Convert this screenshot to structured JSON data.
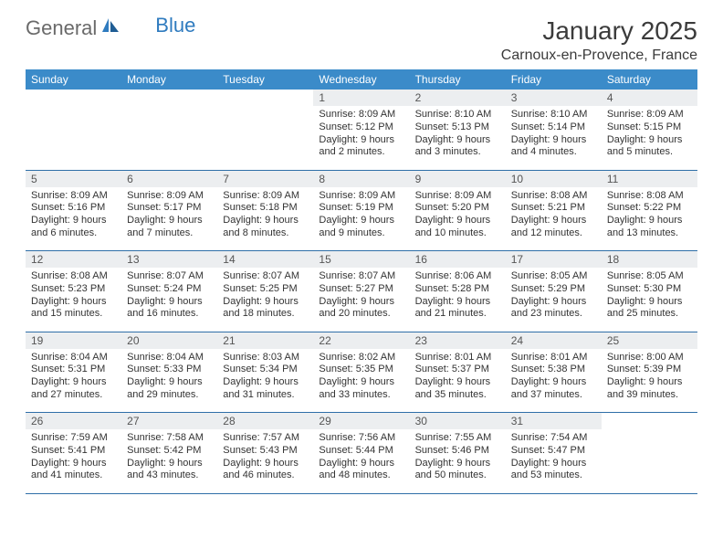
{
  "logo": {
    "text_general": "General",
    "text_blue": "Blue"
  },
  "title": "January 2025",
  "location": "Carnoux-en-Provence, France",
  "colors": {
    "header_bg": "#3b8bc9",
    "header_text": "#ffffff",
    "daynum_bg": "#eceef0",
    "rule": "#2f6fa8",
    "body_text": "#333333",
    "logo_gray": "#6a6a6a",
    "logo_blue": "#2f7bbf"
  },
  "weekdays": [
    "Sunday",
    "Monday",
    "Tuesday",
    "Wednesday",
    "Thursday",
    "Friday",
    "Saturday"
  ],
  "weeks": [
    [
      null,
      null,
      null,
      {
        "n": "1",
        "sr": "Sunrise: 8:09 AM",
        "ss": "Sunset: 5:12 PM",
        "d1": "Daylight: 9 hours",
        "d2": "and 2 minutes."
      },
      {
        "n": "2",
        "sr": "Sunrise: 8:10 AM",
        "ss": "Sunset: 5:13 PM",
        "d1": "Daylight: 9 hours",
        "d2": "and 3 minutes."
      },
      {
        "n": "3",
        "sr": "Sunrise: 8:10 AM",
        "ss": "Sunset: 5:14 PM",
        "d1": "Daylight: 9 hours",
        "d2": "and 4 minutes."
      },
      {
        "n": "4",
        "sr": "Sunrise: 8:09 AM",
        "ss": "Sunset: 5:15 PM",
        "d1": "Daylight: 9 hours",
        "d2": "and 5 minutes."
      }
    ],
    [
      {
        "n": "5",
        "sr": "Sunrise: 8:09 AM",
        "ss": "Sunset: 5:16 PM",
        "d1": "Daylight: 9 hours",
        "d2": "and 6 minutes."
      },
      {
        "n": "6",
        "sr": "Sunrise: 8:09 AM",
        "ss": "Sunset: 5:17 PM",
        "d1": "Daylight: 9 hours",
        "d2": "and 7 minutes."
      },
      {
        "n": "7",
        "sr": "Sunrise: 8:09 AM",
        "ss": "Sunset: 5:18 PM",
        "d1": "Daylight: 9 hours",
        "d2": "and 8 minutes."
      },
      {
        "n": "8",
        "sr": "Sunrise: 8:09 AM",
        "ss": "Sunset: 5:19 PM",
        "d1": "Daylight: 9 hours",
        "d2": "and 9 minutes."
      },
      {
        "n": "9",
        "sr": "Sunrise: 8:09 AM",
        "ss": "Sunset: 5:20 PM",
        "d1": "Daylight: 9 hours",
        "d2": "and 10 minutes."
      },
      {
        "n": "10",
        "sr": "Sunrise: 8:08 AM",
        "ss": "Sunset: 5:21 PM",
        "d1": "Daylight: 9 hours",
        "d2": "and 12 minutes."
      },
      {
        "n": "11",
        "sr": "Sunrise: 8:08 AM",
        "ss": "Sunset: 5:22 PM",
        "d1": "Daylight: 9 hours",
        "d2": "and 13 minutes."
      }
    ],
    [
      {
        "n": "12",
        "sr": "Sunrise: 8:08 AM",
        "ss": "Sunset: 5:23 PM",
        "d1": "Daylight: 9 hours",
        "d2": "and 15 minutes."
      },
      {
        "n": "13",
        "sr": "Sunrise: 8:07 AM",
        "ss": "Sunset: 5:24 PM",
        "d1": "Daylight: 9 hours",
        "d2": "and 16 minutes."
      },
      {
        "n": "14",
        "sr": "Sunrise: 8:07 AM",
        "ss": "Sunset: 5:25 PM",
        "d1": "Daylight: 9 hours",
        "d2": "and 18 minutes."
      },
      {
        "n": "15",
        "sr": "Sunrise: 8:07 AM",
        "ss": "Sunset: 5:27 PM",
        "d1": "Daylight: 9 hours",
        "d2": "and 20 minutes."
      },
      {
        "n": "16",
        "sr": "Sunrise: 8:06 AM",
        "ss": "Sunset: 5:28 PM",
        "d1": "Daylight: 9 hours",
        "d2": "and 21 minutes."
      },
      {
        "n": "17",
        "sr": "Sunrise: 8:05 AM",
        "ss": "Sunset: 5:29 PM",
        "d1": "Daylight: 9 hours",
        "d2": "and 23 minutes."
      },
      {
        "n": "18",
        "sr": "Sunrise: 8:05 AM",
        "ss": "Sunset: 5:30 PM",
        "d1": "Daylight: 9 hours",
        "d2": "and 25 minutes."
      }
    ],
    [
      {
        "n": "19",
        "sr": "Sunrise: 8:04 AM",
        "ss": "Sunset: 5:31 PM",
        "d1": "Daylight: 9 hours",
        "d2": "and 27 minutes."
      },
      {
        "n": "20",
        "sr": "Sunrise: 8:04 AM",
        "ss": "Sunset: 5:33 PM",
        "d1": "Daylight: 9 hours",
        "d2": "and 29 minutes."
      },
      {
        "n": "21",
        "sr": "Sunrise: 8:03 AM",
        "ss": "Sunset: 5:34 PM",
        "d1": "Daylight: 9 hours",
        "d2": "and 31 minutes."
      },
      {
        "n": "22",
        "sr": "Sunrise: 8:02 AM",
        "ss": "Sunset: 5:35 PM",
        "d1": "Daylight: 9 hours",
        "d2": "and 33 minutes."
      },
      {
        "n": "23",
        "sr": "Sunrise: 8:01 AM",
        "ss": "Sunset: 5:37 PM",
        "d1": "Daylight: 9 hours",
        "d2": "and 35 minutes."
      },
      {
        "n": "24",
        "sr": "Sunrise: 8:01 AM",
        "ss": "Sunset: 5:38 PM",
        "d1": "Daylight: 9 hours",
        "d2": "and 37 minutes."
      },
      {
        "n": "25",
        "sr": "Sunrise: 8:00 AM",
        "ss": "Sunset: 5:39 PM",
        "d1": "Daylight: 9 hours",
        "d2": "and 39 minutes."
      }
    ],
    [
      {
        "n": "26",
        "sr": "Sunrise: 7:59 AM",
        "ss": "Sunset: 5:41 PM",
        "d1": "Daylight: 9 hours",
        "d2": "and 41 minutes."
      },
      {
        "n": "27",
        "sr": "Sunrise: 7:58 AM",
        "ss": "Sunset: 5:42 PM",
        "d1": "Daylight: 9 hours",
        "d2": "and 43 minutes."
      },
      {
        "n": "28",
        "sr": "Sunrise: 7:57 AM",
        "ss": "Sunset: 5:43 PM",
        "d1": "Daylight: 9 hours",
        "d2": "and 46 minutes."
      },
      {
        "n": "29",
        "sr": "Sunrise: 7:56 AM",
        "ss": "Sunset: 5:44 PM",
        "d1": "Daylight: 9 hours",
        "d2": "and 48 minutes."
      },
      {
        "n": "30",
        "sr": "Sunrise: 7:55 AM",
        "ss": "Sunset: 5:46 PM",
        "d1": "Daylight: 9 hours",
        "d2": "and 50 minutes."
      },
      {
        "n": "31",
        "sr": "Sunrise: 7:54 AM",
        "ss": "Sunset: 5:47 PM",
        "d1": "Daylight: 9 hours",
        "d2": "and 53 minutes."
      },
      null
    ]
  ]
}
